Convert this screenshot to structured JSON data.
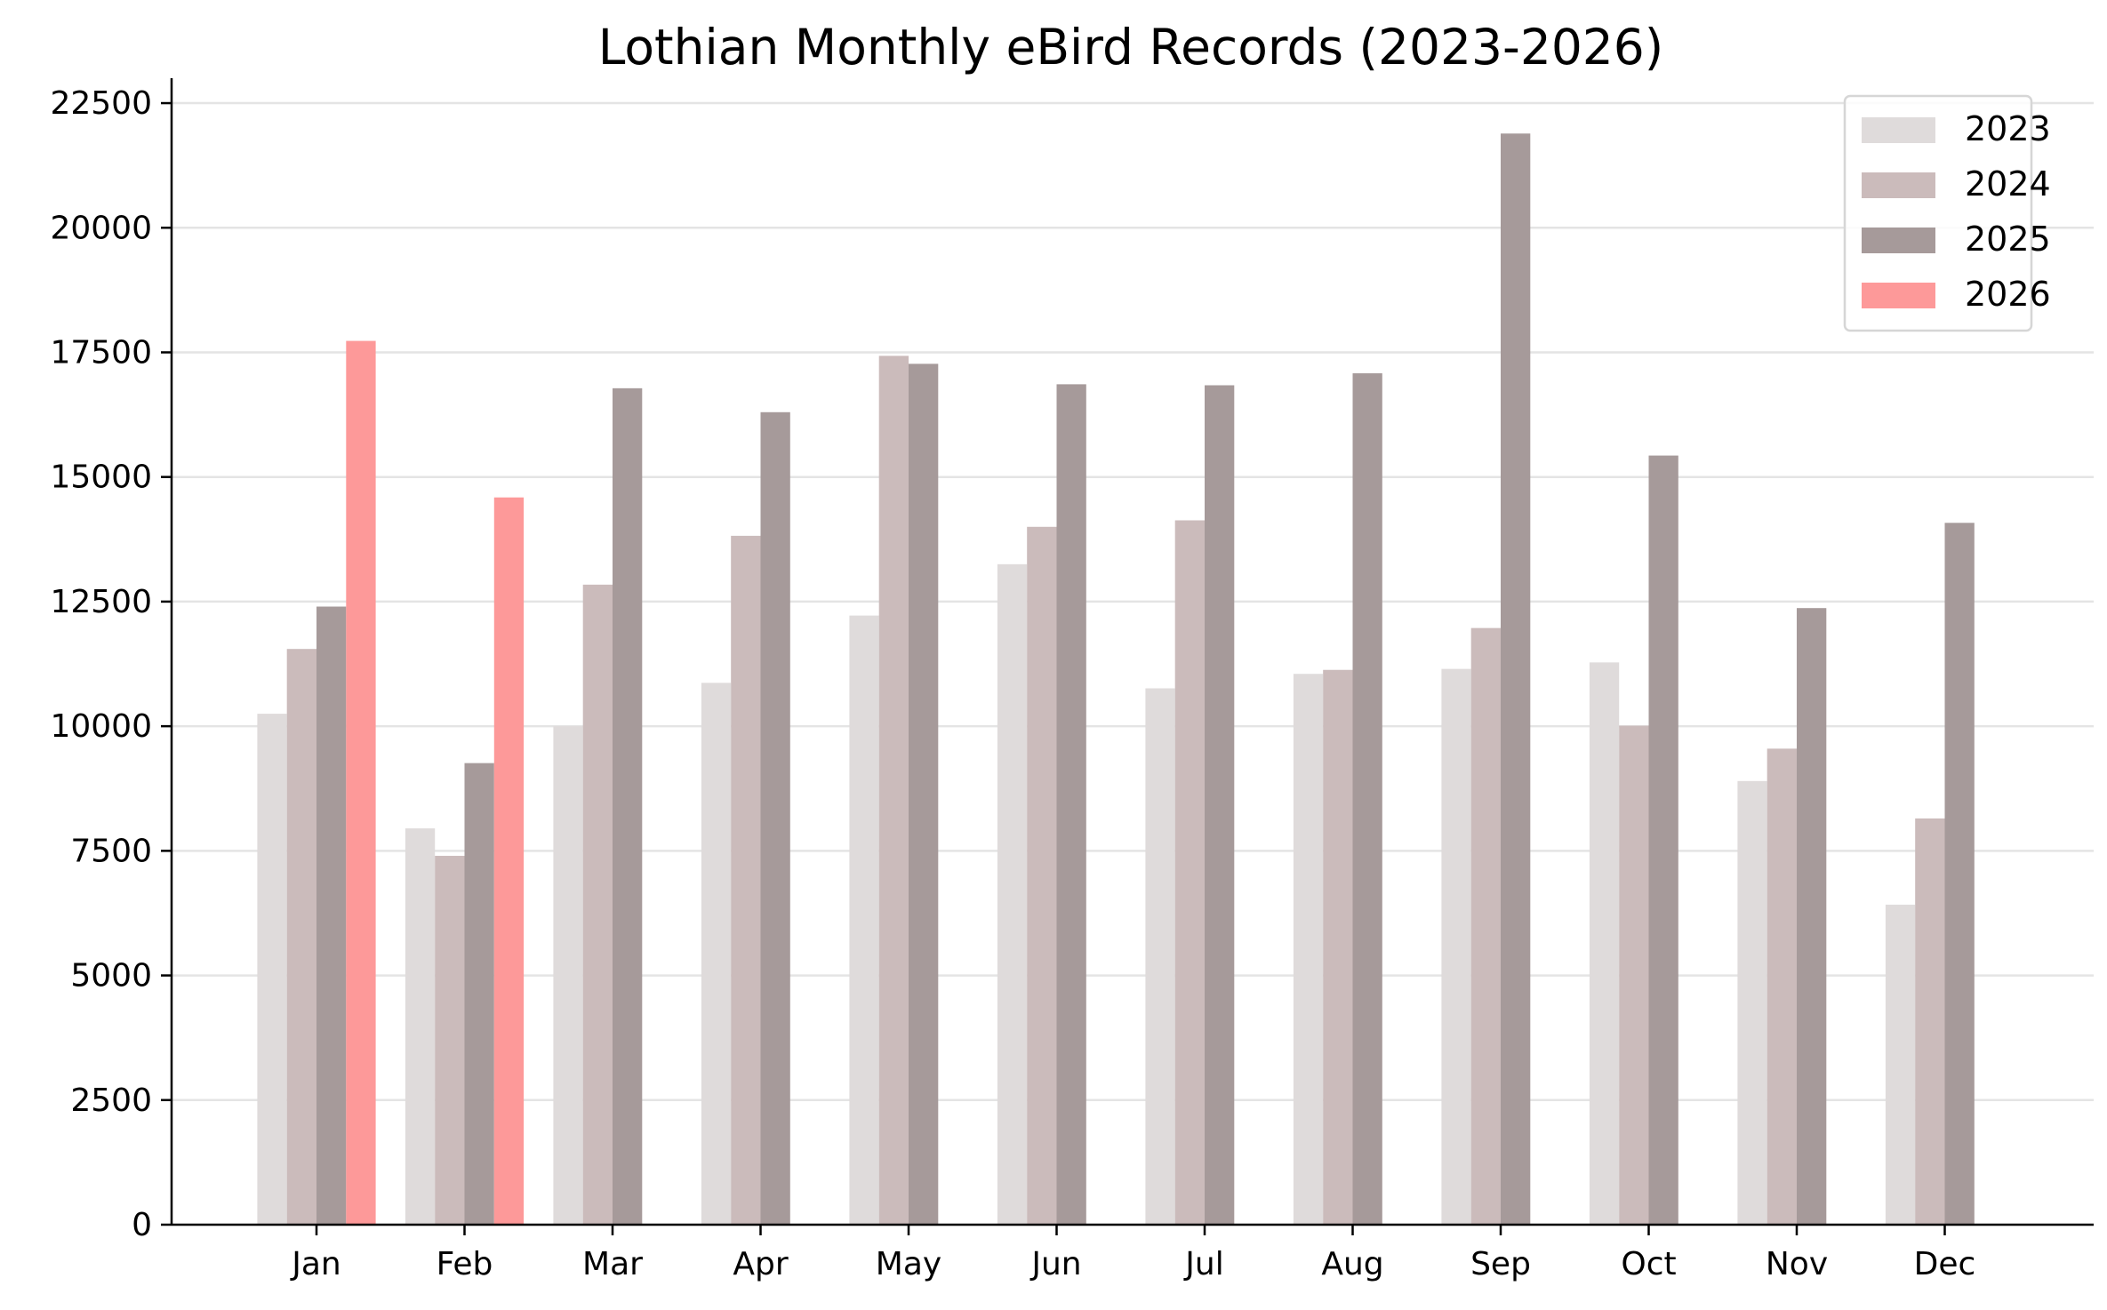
{
  "chart_data": {
    "type": "bar",
    "title": "Lothian Monthly eBird Records (2023-2026)",
    "xlabel": "",
    "ylabel": "",
    "categories": [
      "Jan",
      "Feb",
      "Mar",
      "Apr",
      "May",
      "Jun",
      "Jul",
      "Aug",
      "Sep",
      "Oct",
      "Nov",
      "Dec"
    ],
    "series": [
      {
        "name": "2023",
        "color": "#dfdbdb",
        "values": [
          10250,
          7950,
          10000,
          10870,
          12220,
          13250,
          10760,
          11050,
          11150,
          11280,
          8900,
          6420
        ]
      },
      {
        "name": "2024",
        "color": "#cbbbbb",
        "values": [
          11550,
          7400,
          12840,
          13820,
          17430,
          14000,
          14130,
          11130,
          11970,
          10010,
          9550,
          8150
        ]
      },
      {
        "name": "2025",
        "color": "#a69a9a",
        "values": [
          12400,
          9260,
          16780,
          16300,
          17270,
          16860,
          16840,
          17080,
          21890,
          15430,
          12370,
          14080
        ]
      },
      {
        "name": "2026",
        "color": "#fd9999",
        "values": [
          17730,
          14590,
          null,
          null,
          null,
          null,
          null,
          null,
          null,
          null,
          null,
          null
        ]
      }
    ],
    "yticks": [
      0,
      2500,
      5000,
      7500,
      10000,
      12500,
      15000,
      17500,
      20000,
      22500
    ],
    "ylim": [
      0,
      23000
    ],
    "grid": "horizontal",
    "legend_position": "top-right"
  }
}
